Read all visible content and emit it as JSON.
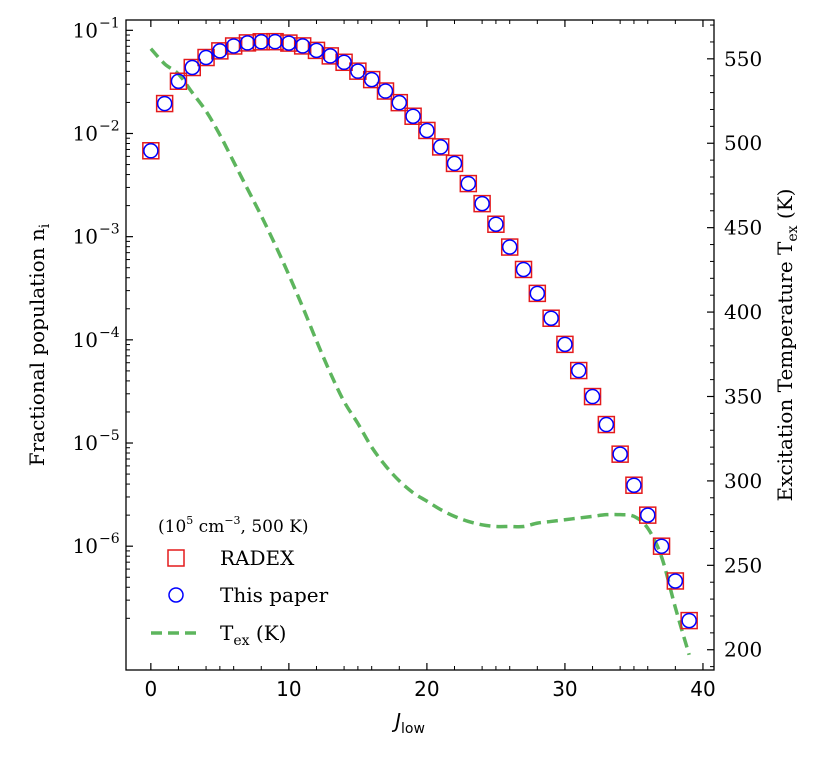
{
  "chart_data": {
    "type": "scatter",
    "xlabel": "J",
    "xlabel_sub": "low",
    "ylabel_left": "Fractional population n",
    "ylabel_left_sub": "i",
    "ylabel_right": "Excitation Temperature T",
    "ylabel_right_sub": "ex",
    "ylabel_right_unit": " (K)",
    "xlim": [
      -1.8,
      40.8
    ],
    "ylim_left_log10": [
      -7.2,
      -0.9
    ],
    "ylim_right": [
      188,
      573
    ],
    "x_ticks": [
      0,
      10,
      20,
      30,
      40
    ],
    "x_tick_labels": [
      "0",
      "10",
      "20",
      "30",
      "40"
    ],
    "y_left_ticks_log10": [
      -1,
      -2,
      -3,
      -4,
      -5,
      -6
    ],
    "y_left_tick_labels": [
      "10",
      "10",
      "10",
      "10",
      "10",
      "10"
    ],
    "y_left_tick_exponents": [
      "−1",
      "−2",
      "−3",
      "−4",
      "−5",
      "−6"
    ],
    "y_right_ticks": [
      200,
      250,
      300,
      350,
      400,
      450,
      500,
      550
    ],
    "y_right_tick_labels": [
      "200",
      "250",
      "300",
      "350",
      "400",
      "450",
      "500",
      "550"
    ],
    "legend": {
      "position": "lower-left",
      "title_prefix": "(10",
      "title_exp1": "5",
      "title_mid": " cm",
      "title_exp2": "−3",
      "title_suffix": ", 500 K)",
      "entries": [
        "RADEX",
        "This paper",
        "T"
      ],
      "entry3_sub": "ex",
      "entry3_suffix": " (K)"
    },
    "series": [
      {
        "name": "RADEX",
        "marker": "open-square",
        "color": "#e41a1c",
        "x": [
          0,
          1,
          2,
          3,
          4,
          5,
          6,
          7,
          8,
          9,
          10,
          11,
          12,
          13,
          14,
          15,
          16,
          17,
          18,
          19,
          20,
          21,
          22,
          23,
          24,
          25,
          26,
          27,
          28,
          29,
          30,
          31,
          32,
          33,
          34,
          35,
          36,
          37,
          38,
          39
        ],
        "y": [
          0.0068,
          0.0195,
          0.0321,
          0.0436,
          0.0545,
          0.0632,
          0.0705,
          0.0755,
          0.0774,
          0.0776,
          0.0752,
          0.0706,
          0.0639,
          0.0565,
          0.049,
          0.0402,
          0.0333,
          0.0258,
          0.0199,
          0.0147,
          0.0107,
          0.00741,
          0.00513,
          0.00327,
          0.00209,
          0.00132,
          0.000793,
          0.000481,
          0.000282,
          0.000162,
          9.04e-05,
          5.04e-05,
          2.82e-05,
          1.51e-05,
          7.8e-06,
          3.9e-06,
          2e-06,
          1e-06,
          4.6e-07,
          1.9e-07
        ]
      },
      {
        "name": "This paper",
        "marker": "open-circle",
        "color": "#0000ff",
        "x": [
          0,
          1,
          2,
          3,
          4,
          5,
          6,
          7,
          8,
          9,
          10,
          11,
          12,
          13,
          14,
          15,
          16,
          17,
          18,
          19,
          20,
          21,
          22,
          23,
          24,
          25,
          26,
          27,
          28,
          29,
          30,
          31,
          32,
          33,
          34,
          35,
          36,
          37,
          38,
          39
        ],
        "y": [
          0.0068,
          0.0195,
          0.0321,
          0.0436,
          0.0545,
          0.0632,
          0.0705,
          0.0755,
          0.0774,
          0.0776,
          0.0752,
          0.0706,
          0.0639,
          0.0565,
          0.049,
          0.0402,
          0.0333,
          0.0258,
          0.0199,
          0.0147,
          0.0107,
          0.00741,
          0.00513,
          0.00327,
          0.00209,
          0.00132,
          0.000793,
          0.000481,
          0.000282,
          0.000162,
          9.04e-05,
          5.04e-05,
          2.82e-05,
          1.51e-05,
          7.8e-06,
          3.9e-06,
          2e-06,
          1e-06,
          4.6e-07,
          1.9e-07
        ]
      },
      {
        "name": "Tex (K)",
        "axis": "right",
        "style": "dashed-line",
        "color": "#5db55d",
        "x": [
          0,
          1,
          2,
          3,
          4,
          5,
          6,
          7,
          8,
          9,
          10,
          11,
          12,
          13,
          14,
          15,
          16,
          17,
          18,
          19,
          20,
          21,
          22,
          23,
          24,
          25,
          26,
          27,
          28,
          29,
          30,
          31,
          32,
          33,
          34,
          35,
          36,
          37,
          38,
          39
        ],
        "y": [
          556,
          547,
          541,
          530,
          519,
          505,
          489,
          473,
          457,
          440,
          422,
          403,
          383,
          364,
          347,
          334,
          320,
          309,
          300,
          293,
          288,
          283,
          279,
          276,
          274,
          273,
          273,
          273,
          275,
          276,
          277,
          278,
          279,
          280,
          280,
          279,
          272,
          255,
          225,
          197
        ]
      }
    ]
  }
}
